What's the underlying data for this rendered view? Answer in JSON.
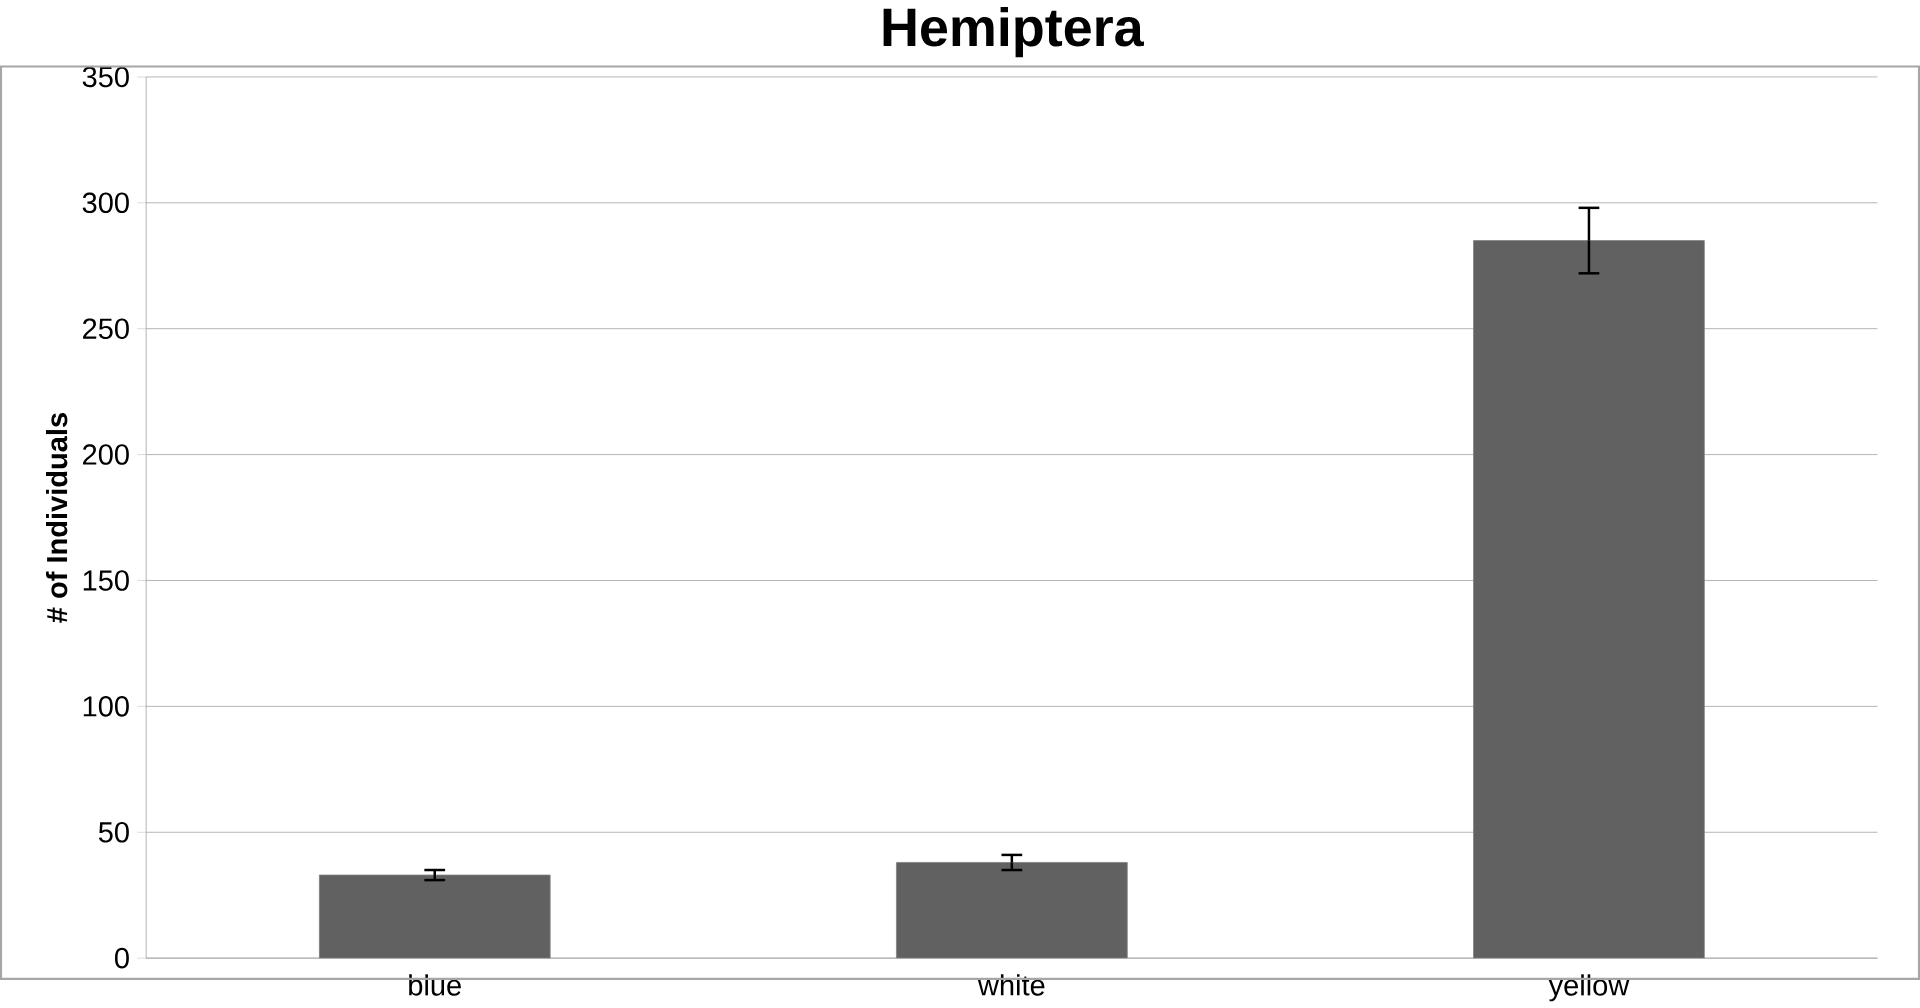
{
  "chart_data": {
    "type": "bar",
    "title": "Hemiptera",
    "ylabel": "# of Individuals",
    "categories": [
      "blue",
      "white",
      "yellow"
    ],
    "values": [
      33,
      38,
      285
    ],
    "errors": [
      2,
      3,
      13
    ],
    "color": "#616161",
    "ylim": [
      0,
      350
    ],
    "yticks": [
      0,
      50,
      100,
      150,
      200,
      250,
      300,
      350
    ],
    "grid": "y"
  }
}
